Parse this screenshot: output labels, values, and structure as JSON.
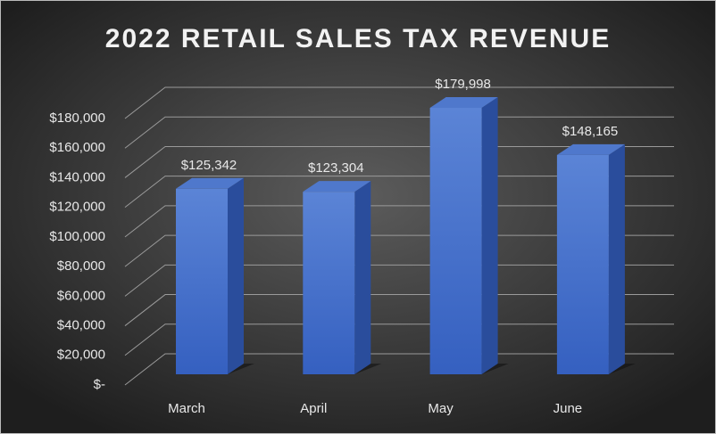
{
  "chart_data": {
    "type": "bar3d",
    "title": "2022 RETAIL SALES TAX REVENUE",
    "categories": [
      "March",
      "April",
      "May",
      "June"
    ],
    "values": [
      125342,
      123304,
      179998,
      148165
    ],
    "value_labels": [
      "$125,342",
      "$123,304",
      "$179,998",
      "$148,165"
    ],
    "color": "#4472c4",
    "ylim": [
      0,
      180000
    ],
    "yticks": [
      {
        "value": 0,
        "label": "$-"
      },
      {
        "value": 20000,
        "label": "$20,000"
      },
      {
        "value": 40000,
        "label": "$40,000"
      },
      {
        "value": 60000,
        "label": "$60,000"
      },
      {
        "value": 80000,
        "label": "$80,000"
      },
      {
        "value": 100000,
        "label": "$100,000"
      },
      {
        "value": 120000,
        "label": "$120,000"
      },
      {
        "value": 140000,
        "label": "$140,000"
      },
      {
        "value": 160000,
        "label": "$160,000"
      },
      {
        "value": 180000,
        "label": "$180,000"
      }
    ],
    "grid": true
  }
}
